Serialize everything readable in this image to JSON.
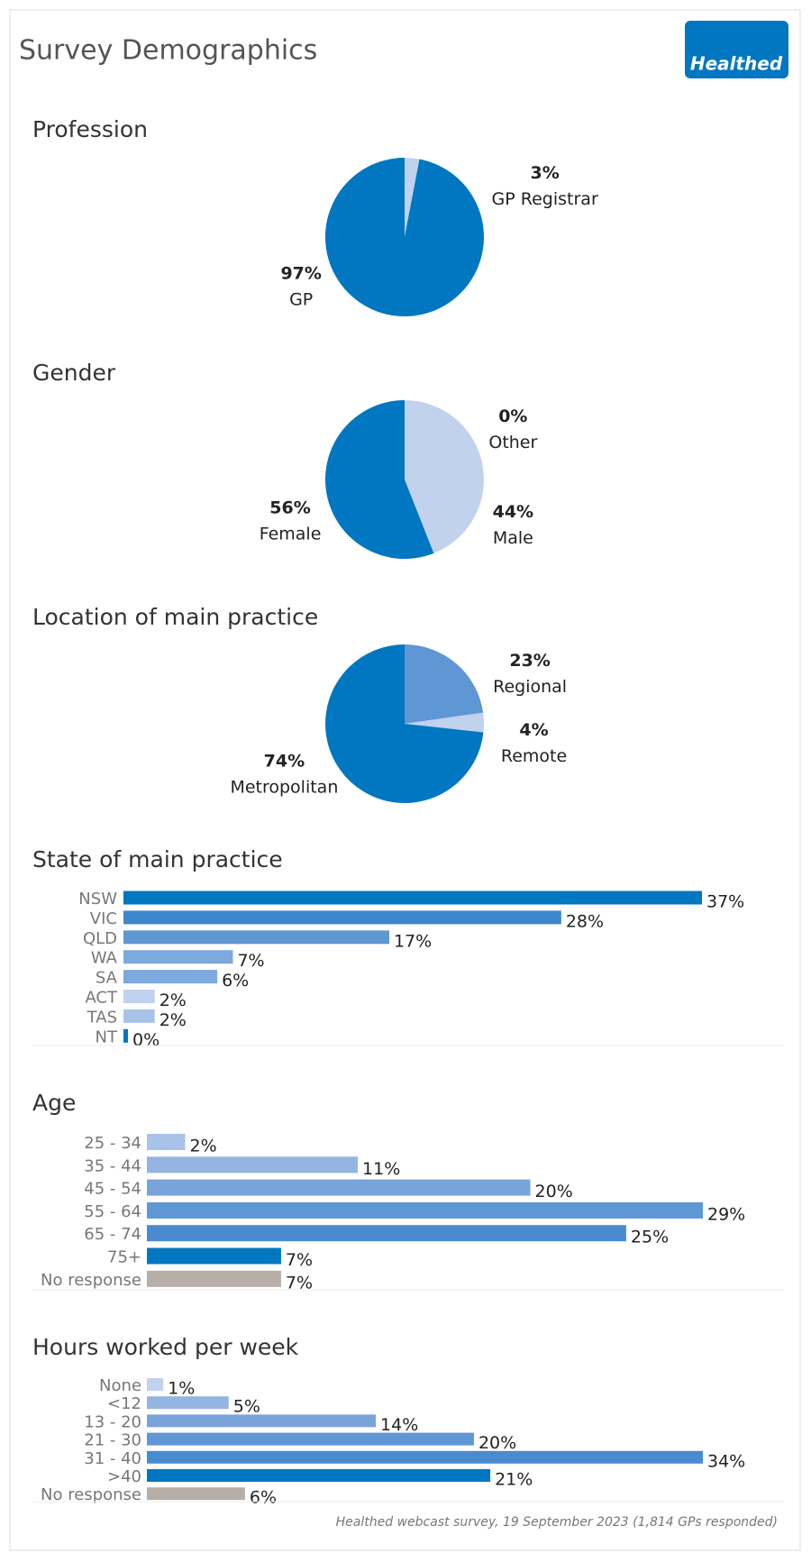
{
  "title": "Survey Demographics",
  "logo": "Healthed",
  "chart_data": [
    {
      "type": "pie",
      "title": "Profession",
      "categories": [
        "GP Registrar",
        "GP"
      ],
      "values": [
        3,
        97
      ],
      "value_labels": [
        "3%",
        "97%"
      ],
      "colors": [
        "#c0d2ee",
        "#0077c0"
      ]
    },
    {
      "type": "pie",
      "title": "Gender",
      "categories": [
        "Other",
        "Male",
        "Female"
      ],
      "values": [
        0,
        44,
        56
      ],
      "value_labels": [
        "0%",
        "44%",
        "56%"
      ],
      "colors": [
        "#b8aea8",
        "#c0d2ee",
        "#0077c0"
      ]
    },
    {
      "type": "pie",
      "title": "Location of main practice",
      "categories": [
        "Regional",
        "Remote",
        "Metropolitan"
      ],
      "values": [
        23,
        4,
        74
      ],
      "value_labels": [
        "23%",
        "4%",
        "74%"
      ],
      "colors": [
        "#5f96d4",
        "#c0d2ee",
        "#0077c0"
      ]
    },
    {
      "type": "bar",
      "title": "State of main practice",
      "categories": [
        "NSW",
        "VIC",
        "QLD",
        "WA",
        "SA",
        "ACT",
        "TAS",
        "NT"
      ],
      "values": [
        37,
        28,
        17,
        7,
        6,
        2,
        2,
        0
      ],
      "value_labels": [
        "37%",
        "28%",
        "17%",
        "7%",
        "6%",
        "2%",
        "2%",
        "0%"
      ],
      "colors": [
        "#0077c0",
        "#3d88cd",
        "#5f96d4",
        "#7da9dd",
        "#7da9dd",
        "#c0d2ee",
        "#a9c3e8",
        "#0077c0"
      ]
    },
    {
      "type": "bar",
      "title": "Age",
      "categories": [
        "25 - 34",
        "35 - 44",
        "45 - 54",
        "55 - 64",
        "65 - 74",
        "75+",
        "No response"
      ],
      "values": [
        2,
        11,
        20,
        29,
        25,
        7,
        7
      ],
      "value_labels": [
        "2%",
        "11%",
        "20%",
        "29%",
        "25%",
        "7%",
        "7%"
      ],
      "colors": [
        "#a9c3e8",
        "#94b5e2",
        "#78a4da",
        "#5f96d4",
        "#4a8bd0",
        "#0077c0",
        "#b8aea8"
      ]
    },
    {
      "type": "bar",
      "title": "Hours worked per week",
      "categories": [
        "None",
        "<12",
        "13 - 20",
        "21 - 30",
        "31 - 40",
        ">40",
        "No response"
      ],
      "values": [
        1,
        5,
        14,
        20,
        34,
        21,
        6
      ],
      "value_labels": [
        "1%",
        "5%",
        "14%",
        "20%",
        "34%",
        "21%",
        "6%"
      ],
      "colors": [
        "#c0d2ee",
        "#94b5e2",
        "#78a4da",
        "#5f96d4",
        "#4a8bd0",
        "#0077c0",
        "#b8aea8"
      ]
    }
  ],
  "footnote": "Healthed webcast survey, 19 September 2023 (1,814 GPs responded)"
}
